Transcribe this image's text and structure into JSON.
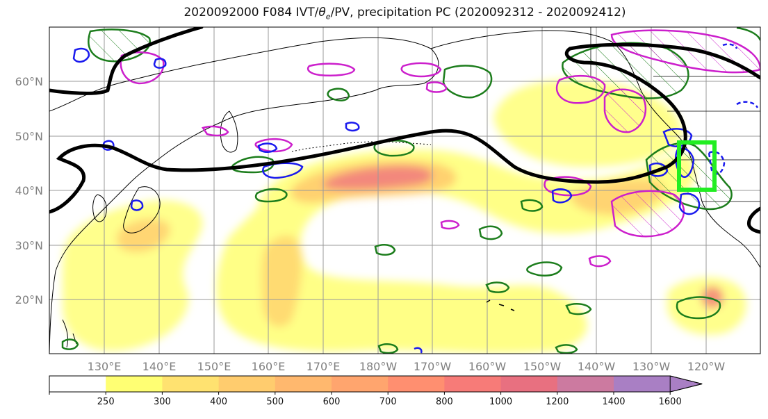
{
  "title": {
    "prefix": "2020092000 F084 IVT/",
    "symbol": "θ",
    "subscript": "e",
    "suffix": "/PV, precipitation PC (2020092312 - 2020092412)"
  },
  "lat_labels": [
    "60°N",
    "50°N",
    "40°N",
    "30°N",
    "20°N"
  ],
  "lon_labels": [
    "130°E",
    "140°E",
    "150°E",
    "160°E",
    "170°E",
    "180°W",
    "170°W",
    "160°W",
    "150°W",
    "140°W",
    "130°W",
    "120°W"
  ],
  "colorbar": {
    "ticks": [
      "250",
      "300",
      "400",
      "500",
      "600",
      "700",
      "800",
      "1000",
      "1200",
      "1400",
      "1600"
    ],
    "colors": [
      "#ffffff",
      "#ffff73",
      "#ffe270",
      "#ffcc6e",
      "#ffb86e",
      "#ffa56e",
      "#ff8f70",
      "#f77b78",
      "#e87080",
      "#cc7aa0",
      "#a97fc4"
    ]
  },
  "colors": {
    "ivt_contour": "#1c7d1c",
    "pv_contour": "#cc1fcc",
    "theta_contour": "#1a1aee",
    "jet_line": "#000000",
    "target_box": "#22ee22",
    "grid": "#999999",
    "coast": "#000000"
  }
}
